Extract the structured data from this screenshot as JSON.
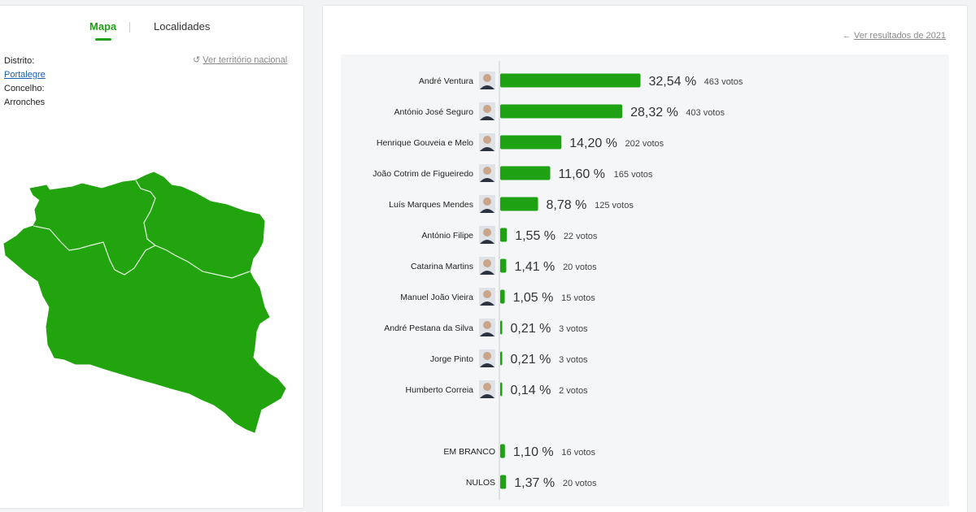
{
  "tabs": {
    "map": "Mapa",
    "localities": "Localidades"
  },
  "location": {
    "district_label": "Distrito:",
    "district_value": "Portalegre",
    "municipality_label": "Concelho:",
    "municipality_value": "Arronches"
  },
  "links": {
    "national": "Ver território nacional",
    "previous_results": "Ver resultados de 2021"
  },
  "colors": {
    "accent": "#1fa114",
    "bar": "#1fa114",
    "map_fill": "#22a40e"
  },
  "chart_data": {
    "type": "bar",
    "orientation": "horizontal",
    "value_unit": "%",
    "categories": [
      "André Ventura",
      "António José Seguro",
      "Henrique Gouveia e Melo",
      "João Cotrim de Figueiredo",
      "Luís Marques Mendes",
      "António Filipe",
      "Catarina Martins",
      "Manuel João Vieira",
      "André Pestana da Silva",
      "Jorge Pinto",
      "Humberto Correia",
      "EM BRANCO",
      "NULOS"
    ],
    "values": [
      32.54,
      28.32,
      14.2,
      11.6,
      8.78,
      1.55,
      1.41,
      1.05,
      0.21,
      0.21,
      0.14,
      1.1,
      1.37
    ],
    "pct_labels": [
      "32,54 %",
      "28,32 %",
      "14,20 %",
      "11,60 %",
      "8,78 %",
      "1,55 %",
      "1,41 %",
      "1,05 %",
      "0,21 %",
      "0,21 %",
      "0,14 %",
      "1,10 %",
      "1,37 %"
    ],
    "votes": [
      463,
      403,
      202,
      165,
      125,
      22,
      20,
      15,
      3,
      3,
      2,
      16,
      20
    ],
    "vote_labels": [
      "463 votos",
      "403 votos",
      "202 votos",
      "165 votos",
      "125 votos",
      "22 votos",
      "20 votos",
      "15 votos",
      "3 votos",
      "3 votos",
      "2 votos",
      "16 votos",
      "20 votos"
    ],
    "has_photo": [
      true,
      true,
      true,
      true,
      true,
      true,
      true,
      true,
      true,
      true,
      true,
      false,
      false
    ]
  }
}
